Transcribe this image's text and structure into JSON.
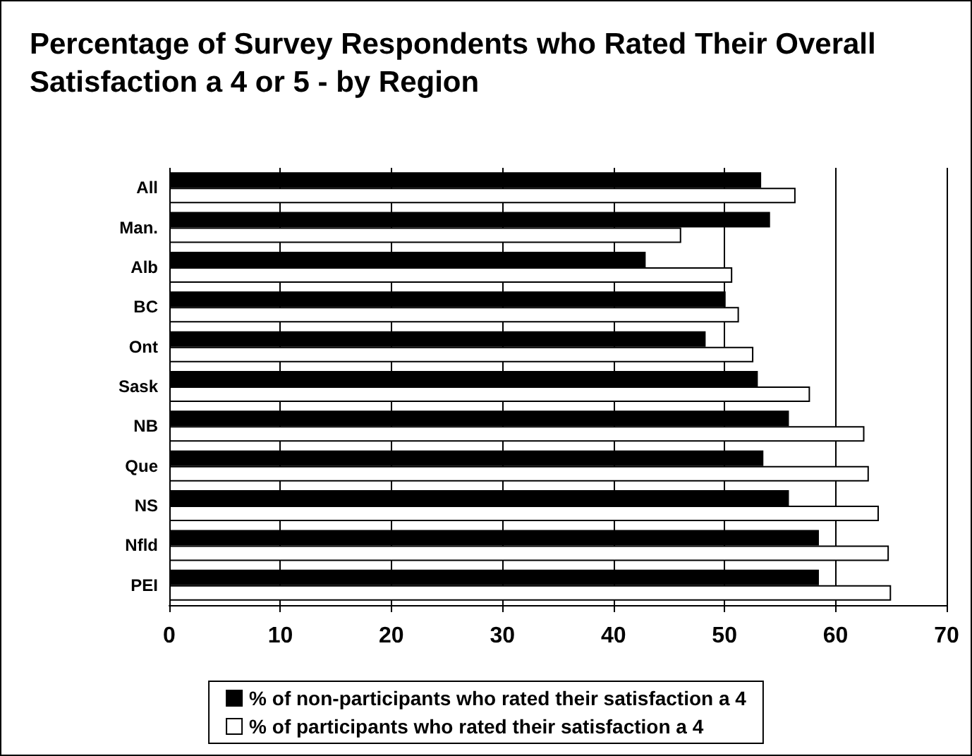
{
  "chart_data": {
    "type": "bar",
    "orientation": "horizontal",
    "title": "Percentage of Survey Respondents who Rated Their Overall Satisfaction a 4 or 5 - by Region",
    "categories": [
      "All",
      "Man.",
      "Alb",
      "BC",
      "Ont",
      "Sask",
      "NB",
      "Que",
      "NS",
      "Nfld",
      "PEI"
    ],
    "series": [
      {
        "name": "% of non-participants who rated their satisfaction a 4",
        "color": "#000000",
        "values": [
          53.3,
          54.1,
          42.9,
          50.1,
          48.3,
          53.0,
          55.8,
          53.5,
          55.8,
          58.5,
          58.5
        ]
      },
      {
        "name": "% of participants who rated their satisfaction a 4",
        "color": "#ffffff",
        "values": [
          56.4,
          46.1,
          50.7,
          51.3,
          52.6,
          57.7,
          62.6,
          63.0,
          63.9,
          64.8,
          65.0
        ]
      }
    ],
    "xlim": [
      0,
      70
    ],
    "xticks": [
      0,
      10,
      20,
      30,
      40,
      50,
      60,
      70
    ],
    "grid": "x",
    "legend": "bottom"
  }
}
